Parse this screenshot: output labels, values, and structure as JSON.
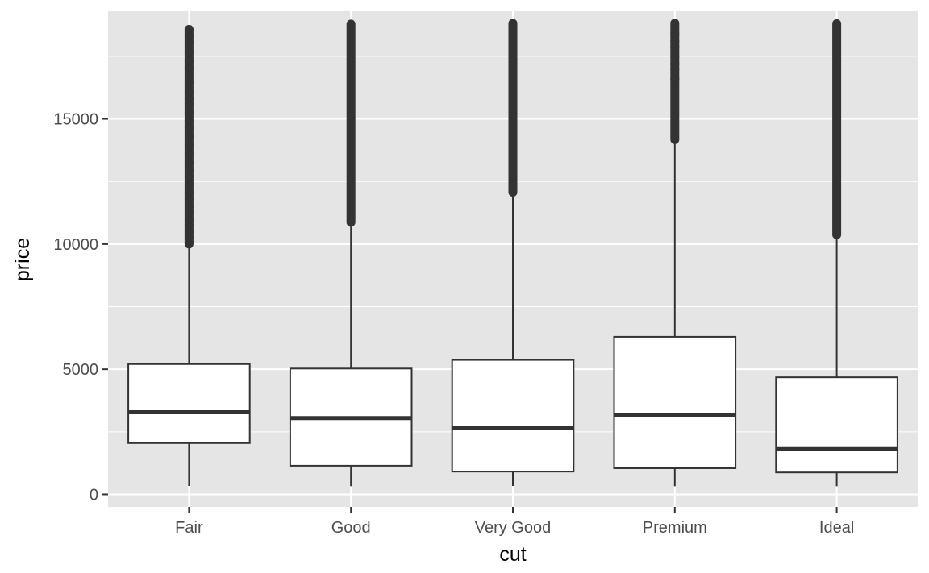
{
  "chart_data": {
    "type": "boxplot",
    "title": "",
    "xlabel": "cut",
    "ylabel": "price",
    "categories": [
      "Fair",
      "Good",
      "Very Good",
      "Premium",
      "Ideal"
    ],
    "ylim": [
      -500,
      19300
    ],
    "yticks": [
      0,
      5000,
      10000,
      15000
    ],
    "ytick_labels": [
      "0",
      "5000",
      "10000",
      "15000"
    ],
    "grid": true,
    "legend": "none",
    "colors": {
      "panel_background": "#e5e5e5",
      "grid_line": "#ffffff",
      "box_fill": "#ffffff",
      "box_stroke": "#333333",
      "outlier": "#333333"
    },
    "boxes": [
      {
        "category": "Fair",
        "whisker_low": 337,
        "q1": 2050,
        "median": 3282,
        "q3": 5206,
        "whisker_high": 9950,
        "outlier_min": 10000,
        "outlier_max": 18574
      },
      {
        "category": "Good",
        "whisker_low": 327,
        "q1": 1145,
        "median": 3050,
        "q3": 5028,
        "whisker_high": 10850,
        "outlier_min": 10870,
        "outlier_max": 18788
      },
      {
        "category": "Very Good",
        "whisker_low": 336,
        "q1": 912,
        "median": 2648,
        "q3": 5373,
        "whisker_high": 12050,
        "outlier_min": 12070,
        "outlier_max": 18818
      },
      {
        "category": "Premium",
        "whisker_low": 326,
        "q1": 1046,
        "median": 3185,
        "q3": 6296,
        "whisker_high": 14150,
        "outlier_min": 14170,
        "outlier_max": 18823
      },
      {
        "category": "Ideal",
        "whisker_low": 326,
        "q1": 878,
        "median": 1810,
        "q3": 4678,
        "whisker_high": 10350,
        "outlier_min": 10370,
        "outlier_max": 18806
      }
    ],
    "outlier_samples": {
      "Fair": [
        10060,
        10250,
        10480,
        10750,
        10960,
        11250,
        11500,
        11800,
        12050,
        12400,
        12700,
        12950,
        13250,
        13600,
        13950,
        14300,
        14650,
        14900,
        15250,
        15600,
        15800,
        16100,
        16450,
        17050,
        17300,
        17700,
        18050,
        18300,
        18574
      ],
      "Good": [],
      "Very Good": [],
      "Premium": [
        16600,
        17000,
        17200,
        17500,
        17900,
        18100,
        18400
      ],
      "Ideal": []
    }
  }
}
